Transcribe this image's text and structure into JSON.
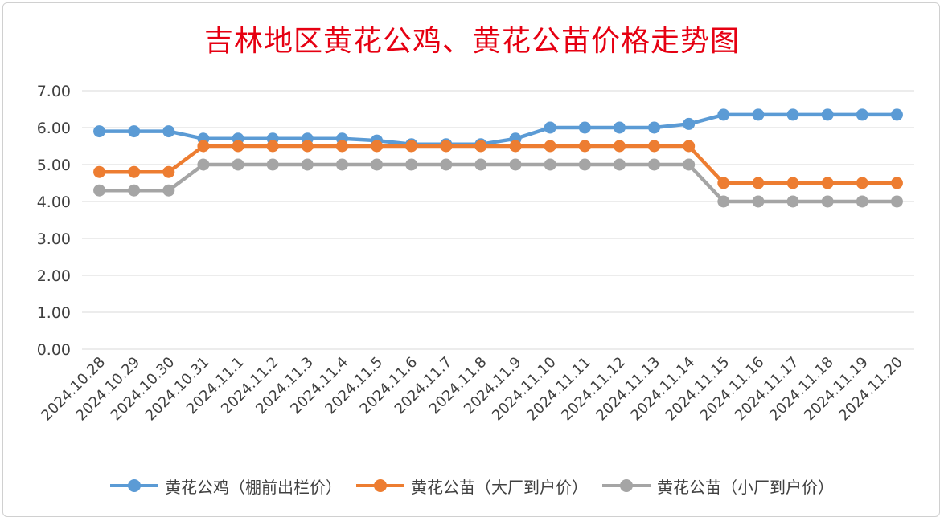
{
  "chart_data": {
    "type": "line",
    "title": "吉林地区黄花公鸡、黄花公苗价格走势图",
    "xlabel": "",
    "ylabel": "",
    "ylim": [
      0,
      7
    ],
    "y_ticks": [
      "0.00",
      "1.00",
      "2.00",
      "3.00",
      "4.00",
      "5.00",
      "6.00",
      "7.00"
    ],
    "grid": "horizontal",
    "legend_position": "bottom",
    "categories": [
      "2024.10.28",
      "2024.10.29",
      "2024.10.30",
      "2024.10.31",
      "2024.11.1",
      "2024.11.2",
      "2024.11.3",
      "2024.11.4",
      "2024.11.5",
      "2024.11.6",
      "2024.11.7",
      "2024.11.8",
      "2024.11.9",
      "2024.11.10",
      "2024.11.11",
      "2024.11.12",
      "2024.11.13",
      "2024.11.14",
      "2024.11.15",
      "2024.11.16",
      "2024.11.17",
      "2024.11.18",
      "2024.11.19",
      "2024.11.20"
    ],
    "series": [
      {
        "name": "黄花公鸡（棚前出栏价）",
        "color": "#5b9bd5",
        "values": [
          5.9,
          5.9,
          5.9,
          5.7,
          5.7,
          5.7,
          5.7,
          5.7,
          5.65,
          5.55,
          5.55,
          5.55,
          5.7,
          6.0,
          6.0,
          6.0,
          6.0,
          6.1,
          6.35,
          6.35,
          6.35,
          6.35,
          6.35,
          6.35
        ]
      },
      {
        "name": "黄花公苗（大厂到户价）",
        "color": "#ed7d31",
        "values": [
          4.8,
          4.8,
          4.8,
          5.5,
          5.5,
          5.5,
          5.5,
          5.5,
          5.5,
          5.5,
          5.5,
          5.5,
          5.5,
          5.5,
          5.5,
          5.5,
          5.5,
          5.5,
          4.5,
          4.5,
          4.5,
          4.5,
          4.5,
          4.5
        ]
      },
      {
        "name": "黄花公苗（小厂到户价）",
        "color": "#a5a5a5",
        "values": [
          4.3,
          4.3,
          4.3,
          5.0,
          5.0,
          5.0,
          5.0,
          5.0,
          5.0,
          5.0,
          5.0,
          5.0,
          5.0,
          5.0,
          5.0,
          5.0,
          5.0,
          5.0,
          4.0,
          4.0,
          4.0,
          4.0,
          4.0,
          4.0
        ]
      }
    ]
  }
}
